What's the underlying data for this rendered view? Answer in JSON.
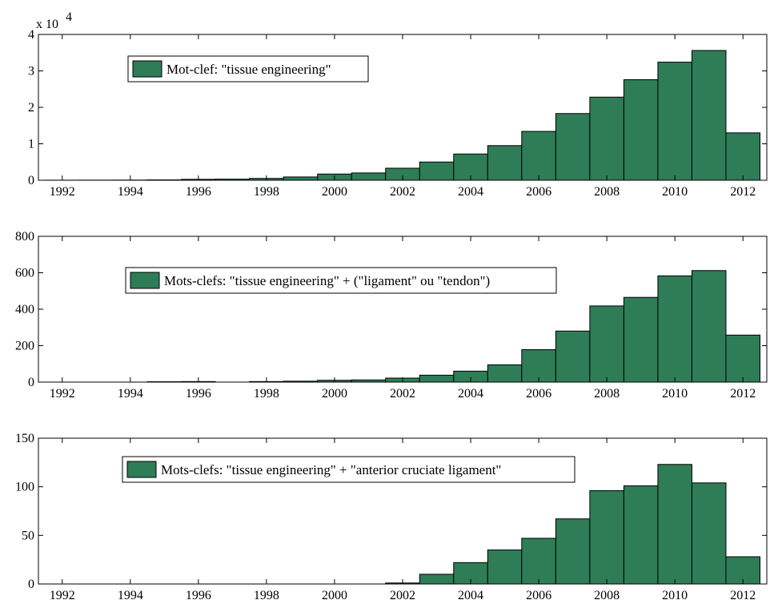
{
  "chart_data": [
    {
      "type": "bar",
      "x": [
        1992,
        1993,
        1994,
        1995,
        1996,
        1997,
        1998,
        1999,
        2000,
        2001,
        2002,
        2003,
        2004,
        2005,
        2006,
        2007,
        2008,
        2009,
        2010,
        2011,
        2012
      ],
      "series": [
        {
          "name": "Mot-clef: \"tissue engineering\"",
          "values": [
            20,
            30,
            50,
            100,
            250,
            300,
            500,
            900,
            1700,
            2000,
            3300,
            5000,
            7200,
            9500,
            13400,
            18300,
            22800,
            27600,
            32400,
            35600,
            13000
          ]
        }
      ],
      "ylim": [
        0,
        40000
      ],
      "yticks": [
        0,
        10000,
        20000,
        30000,
        40000
      ],
      "ytick_labels": [
        "0",
        "1",
        "2",
        "3",
        "4"
      ],
      "y_multiplier_label": "x 10",
      "y_multiplier_exponent": "4",
      "xticks": [
        1992,
        1994,
        1996,
        1998,
        2000,
        2002,
        2004,
        2006,
        2008,
        2010,
        2012
      ],
      "xlim": [
        1991.3,
        2012.7
      ],
      "legend_position": "top-left",
      "grid": false,
      "bar_color": "#2e7d56"
    },
    {
      "type": "bar",
      "x": [
        1992,
        1993,
        1994,
        1995,
        1996,
        1997,
        1998,
        1999,
        2000,
        2001,
        2002,
        2003,
        2004,
        2005,
        2006,
        2007,
        2008,
        2009,
        2010,
        2011,
        2012
      ],
      "series": [
        {
          "name": "Mots-clefs: \"tissue engineering\" + (\"ligament\" ou \"tendon\")",
          "values": [
            0,
            0,
            0,
            2,
            3,
            0,
            3,
            5,
            10,
            12,
            22,
            38,
            60,
            95,
            178,
            280,
            418,
            465,
            583,
            612,
            258
          ]
        }
      ],
      "ylim": [
        0,
        800
      ],
      "yticks": [
        0,
        200,
        400,
        600,
        800
      ],
      "ytick_labels": [
        "0",
        "200",
        "400",
        "600",
        "800"
      ],
      "xticks": [
        1992,
        1994,
        1996,
        1998,
        2000,
        2002,
        2004,
        2006,
        2008,
        2010,
        2012
      ],
      "xlim": [
        1991.3,
        2012.7
      ],
      "legend_position": "top-left",
      "grid": false,
      "bar_color": "#2e7d56"
    },
    {
      "type": "bar",
      "x": [
        1992,
        1993,
        1994,
        1995,
        1996,
        1997,
        1998,
        1999,
        2000,
        2001,
        2002,
        2003,
        2004,
        2005,
        2006,
        2007,
        2008,
        2009,
        2010,
        2011,
        2012
      ],
      "series": [
        {
          "name": "Mots-clefs: \"tissue engineering\" + \"anterior cruciate ligament\"",
          "values": [
            0,
            0,
            0,
            0,
            0,
            0,
            0,
            0,
            0,
            0,
            1,
            10,
            22,
            35,
            47,
            67,
            96,
            101,
            123,
            104,
            28
          ]
        }
      ],
      "ylim": [
        0,
        150
      ],
      "yticks": [
        0,
        50,
        100,
        150
      ],
      "ytick_labels": [
        "0",
        "50",
        "100",
        "150"
      ],
      "xticks": [
        1992,
        1994,
        1996,
        1998,
        2000,
        2002,
        2004,
        2006,
        2008,
        2010,
        2012
      ],
      "xlim": [
        1991.3,
        2012.7
      ],
      "legend_position": "top-left",
      "grid": false,
      "bar_color": "#2e7d56"
    }
  ]
}
